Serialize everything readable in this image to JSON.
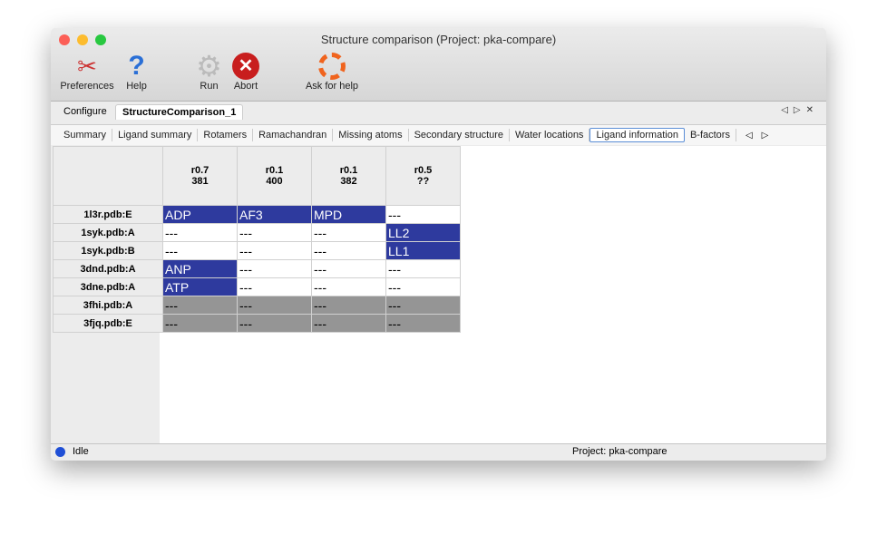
{
  "window": {
    "title": "Structure comparison (Project: pka-compare)"
  },
  "toolbar": [
    {
      "label": "Preferences",
      "icon": "tools-icon"
    },
    {
      "label": "Help",
      "icon": "help-icon"
    },
    {
      "label": "Run",
      "icon": "gear-icon"
    },
    {
      "label": "Abort",
      "icon": "abort-icon"
    },
    {
      "label": "Ask for help",
      "icon": "lifebuoy-icon"
    }
  ],
  "tabs": [
    {
      "label": "Configure"
    },
    {
      "label": "StructureComparison_1",
      "active": true
    }
  ],
  "subtabs": [
    "Summary",
    "Ligand summary",
    "Rotamers",
    "Ramachandran",
    "Missing atoms",
    "Secondary structure",
    "Water locations",
    "Ligand information",
    "B-factors"
  ],
  "active_subtab": "Ligand information",
  "table": {
    "columns": [
      {
        "l1": "r0.7",
        "l2": "381"
      },
      {
        "l1": "r0.1",
        "l2": "400"
      },
      {
        "l1": "r0.1",
        "l2": "382"
      },
      {
        "l1": "r0.5",
        "l2": "??"
      }
    ],
    "rows": [
      {
        "name": "1l3r.pdb:E",
        "cells": [
          [
            "ADP",
            "hit"
          ],
          [
            "AF3",
            "hit"
          ],
          [
            "MPD",
            "hit"
          ],
          [
            "---",
            "miss"
          ]
        ]
      },
      {
        "name": "1syk.pdb:A",
        "cells": [
          [
            "---",
            "miss"
          ],
          [
            "---",
            "miss"
          ],
          [
            "---",
            "miss"
          ],
          [
            "LL2",
            "hit"
          ]
        ]
      },
      {
        "name": "1syk.pdb:B",
        "cells": [
          [
            "---",
            "miss"
          ],
          [
            "---",
            "miss"
          ],
          [
            "---",
            "miss"
          ],
          [
            "LL1",
            "hit"
          ]
        ]
      },
      {
        "name": "3dnd.pdb:A",
        "cells": [
          [
            "ANP",
            "hit"
          ],
          [
            "---",
            "miss"
          ],
          [
            "---",
            "miss"
          ],
          [
            "---",
            "miss"
          ]
        ]
      },
      {
        "name": "3dne.pdb:A",
        "cells": [
          [
            "ATP",
            "hit"
          ],
          [
            "---",
            "miss"
          ],
          [
            "---",
            "miss"
          ],
          [
            "---",
            "miss"
          ]
        ]
      },
      {
        "name": "3fhi.pdb:A",
        "cells": [
          [
            "---",
            "grey"
          ],
          [
            "---",
            "grey"
          ],
          [
            "---",
            "grey"
          ],
          [
            "---",
            "grey"
          ]
        ]
      },
      {
        "name": "3fjq.pdb:E",
        "cells": [
          [
            "---",
            "grey"
          ],
          [
            "---",
            "grey"
          ],
          [
            "---",
            "grey"
          ],
          [
            "---",
            "grey"
          ]
        ]
      }
    ]
  },
  "status": {
    "text": "Idle",
    "project": "Project: pka-compare"
  },
  "colors": {
    "hit": "#2e3a9e",
    "grey": "#959595"
  }
}
